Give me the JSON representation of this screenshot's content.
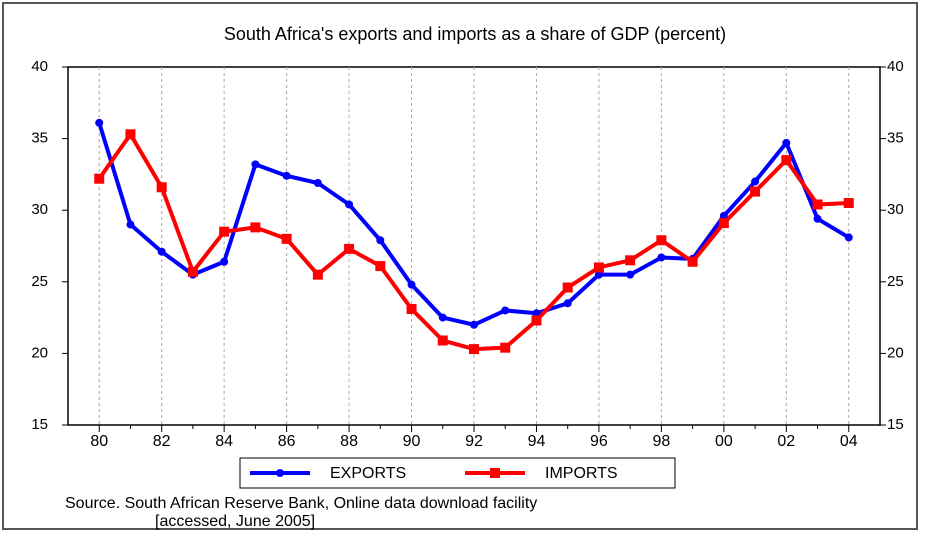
{
  "chart_data": {
    "type": "line",
    "title": "South Africa's exports and imports as a share of GDP (percent)",
    "categories": [
      "80",
      null,
      "82",
      null,
      "84",
      null,
      "86",
      null,
      "88",
      null,
      "90",
      null,
      "92",
      null,
      "94",
      null,
      "96",
      null,
      "98",
      null,
      "00",
      null,
      "02",
      null,
      "04"
    ],
    "series": [
      {
        "name": "EXPORTS",
        "color": "#0000ff",
        "marker": "circle",
        "values": [
          36.1,
          29.0,
          27.1,
          25.5,
          26.4,
          33.2,
          32.4,
          31.9,
          30.4,
          27.9,
          24.8,
          22.5,
          22.0,
          23.0,
          22.8,
          23.5,
          25.5,
          25.5,
          26.7,
          26.6,
          29.6,
          32.0,
          34.7,
          29.4,
          28.1
        ]
      },
      {
        "name": "IMPORTS",
        "color": "#ff0000",
        "marker": "square",
        "values": [
          32.2,
          35.3,
          31.6,
          25.7,
          28.5,
          28.8,
          28.0,
          25.5,
          27.3,
          26.1,
          23.1,
          20.9,
          20.3,
          20.4,
          22.3,
          24.6,
          26.0,
          26.5,
          27.9,
          26.4,
          29.1,
          31.3,
          33.5,
          30.4,
          30.5
        ]
      }
    ],
    "ylim": [
      15,
      40
    ],
    "yticks": [
      15,
      20,
      25,
      30,
      35,
      40
    ],
    "y2lim": [
      15,
      40
    ],
    "y2ticks": [
      15,
      20,
      25,
      30,
      35,
      40
    ],
    "grid": "x",
    "legend": "bottom",
    "source": [
      "Source. South African Reserve Bank, Online data download facility",
      "[accessed, June 2005]"
    ]
  }
}
